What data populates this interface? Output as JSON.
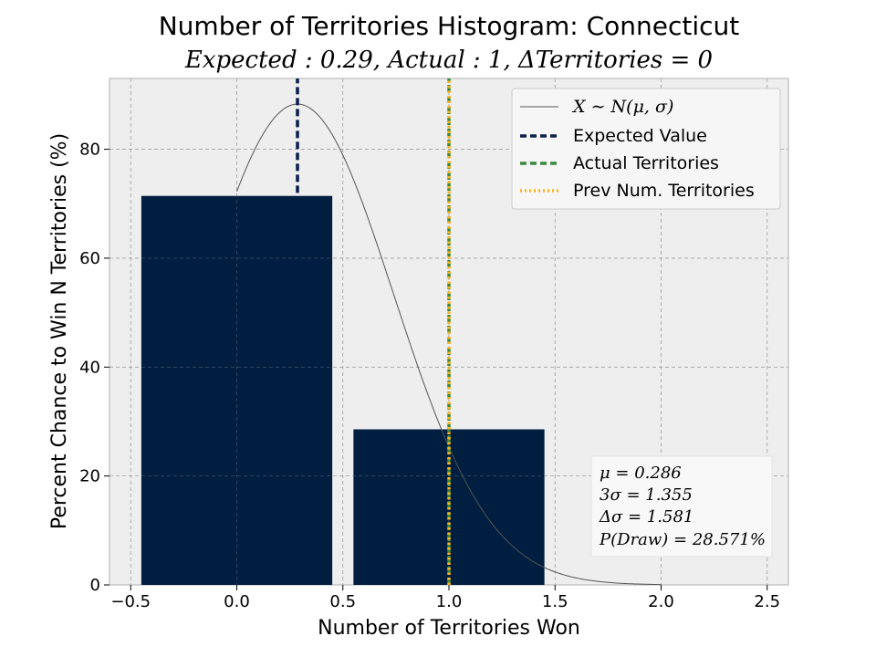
{
  "chart_data": {
    "type": "bar",
    "title": "Number of Territories Histogram: Connecticut",
    "subtitle": "Expected : 0.29, Actual : 1, ΔTerritories = 0",
    "xlabel": "Number of Territories Won",
    "ylabel": "Percent Chance to Win N Territories (%)",
    "xlim": [
      -0.6,
      2.6
    ],
    "ylim": [
      0,
      93
    ],
    "xticks": [
      -0.5,
      0.0,
      0.5,
      1.0,
      1.5,
      2.0,
      2.5
    ],
    "xtick_labels": [
      "−0.5",
      "0.0",
      "0.5",
      "1.0",
      "1.5",
      "2.0",
      "2.5"
    ],
    "yticks": [
      0,
      20,
      40,
      60,
      80
    ],
    "ytick_labels": [
      "0",
      "20",
      "40",
      "60",
      "80"
    ],
    "grid": true,
    "bars": [
      {
        "x": 0,
        "value": 71.43,
        "width": 0.9
      },
      {
        "x": 1,
        "value": 28.57,
        "width": 0.9
      }
    ],
    "normal_curve": {
      "mu": 0.286,
      "sigma": 0.4517,
      "x_start": 0.0,
      "x_end": 2.0,
      "peak": 88.3
    },
    "vlines": [
      {
        "label": "Expected Value",
        "x": 0.286,
        "style": "dashed",
        "color": "#0b1e4a",
        "y_from": 72,
        "y_to": 93
      },
      {
        "label": "Actual Territories",
        "x": 1.0,
        "style": "dashed",
        "color": "#3a8a3e",
        "y_from": 0,
        "y_to": 93
      },
      {
        "label": "Prev Num. Territories",
        "x": 1.0,
        "style": "dotted",
        "color": "#ffb320",
        "y_from": 0,
        "y_to": 93
      }
    ],
    "legend": {
      "position": "top-right",
      "entries": [
        {
          "label": "X ∼ N(μ, σ)",
          "style": "thin-line",
          "color": "#555555",
          "math": true
        },
        {
          "label": "Expected Value",
          "style": "dashed",
          "color": "#0b1e4a"
        },
        {
          "label": "Actual Territories",
          "style": "dashed",
          "color": "#3a8a3e"
        },
        {
          "label": "Prev Num. Territories",
          "style": "dotted",
          "color": "#ffb320"
        }
      ]
    },
    "stats_box": {
      "position": "bottom-right",
      "lines": [
        "μ = 0.286",
        "3σ = 1.355",
        "Δσ = 1.581",
        "P(Draw) = 28.571%"
      ]
    },
    "colors": {
      "bar": "#001e40",
      "plot_bg": "#eeeeee",
      "grid": "#b0b0b0",
      "curve": "#555555"
    }
  }
}
